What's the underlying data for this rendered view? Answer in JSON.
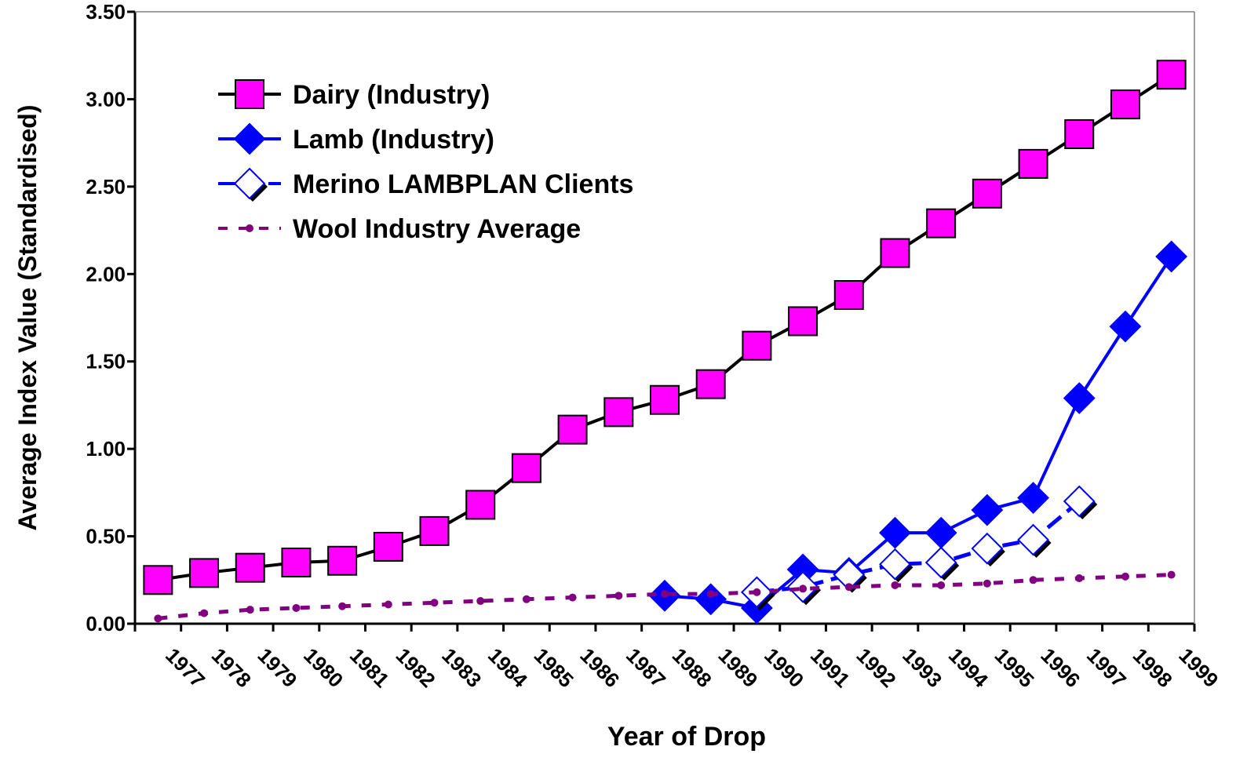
{
  "chart_data": {
    "type": "line",
    "x_label": "Year of Drop",
    "y_label": "Average Index Value (Standardised)",
    "categories": [
      "1977",
      "1978",
      "1979",
      "1980",
      "1981",
      "1982",
      "1983",
      "1984",
      "1985",
      "1986",
      "1987",
      "1988",
      "1989",
      "1990",
      "1991",
      "1992",
      "1993",
      "1994",
      "1995",
      "1996",
      "1997",
      "1998",
      "1999"
    ],
    "series": [
      {
        "name": "Dairy (Industry)",
        "color": "#ff00ff",
        "line_color": "#000000",
        "marker": "square",
        "line_style": "solid",
        "values": [
          0.25,
          0.29,
          0.32,
          0.35,
          0.36,
          0.44,
          0.53,
          0.68,
          0.89,
          1.11,
          1.21,
          1.28,
          1.37,
          1.59,
          1.73,
          1.88,
          2.12,
          2.29,
          2.46,
          2.63,
          2.8,
          2.97,
          3.14
        ]
      },
      {
        "name": "Lamb (Industry)",
        "color": "#0000ff",
        "line_color": "#0000ff",
        "marker": "diamond",
        "line_style": "solid",
        "values": [
          null,
          null,
          null,
          null,
          null,
          null,
          null,
          null,
          null,
          null,
          null,
          0.16,
          0.14,
          0.09,
          0.31,
          0.29,
          0.52,
          0.52,
          0.65,
          0.72,
          1.29,
          1.7,
          2.1
        ]
      },
      {
        "name": "Merino LAMBPLAN Clients",
        "color": "#0000ff",
        "line_color": "#0000ff",
        "marker": "open-diamond",
        "line_style": "dashed",
        "values": [
          null,
          null,
          null,
          null,
          null,
          null,
          null,
          null,
          null,
          null,
          null,
          null,
          null,
          0.18,
          0.21,
          0.28,
          0.34,
          0.35,
          0.43,
          0.48,
          0.7,
          null,
          null
        ]
      },
      {
        "name": "Wool Industry Average",
        "color": "#800080",
        "line_color": "#800080",
        "marker": "dot",
        "line_style": "dotted",
        "values": [
          0.03,
          0.06,
          0.08,
          0.09,
          0.1,
          0.11,
          0.12,
          0.13,
          0.14,
          0.15,
          0.16,
          0.17,
          0.17,
          0.18,
          0.2,
          0.21,
          0.22,
          0.22,
          0.23,
          0.25,
          0.26,
          0.27,
          0.28
        ]
      }
    ],
    "ylim": [
      0,
      3.5
    ],
    "yticks": [
      {
        "value": 0,
        "label": "0.00"
      },
      {
        "value": 0.5,
        "label": "0.50"
      },
      {
        "value": 1,
        "label": "1.00"
      },
      {
        "value": 1.5,
        "label": "1.50"
      },
      {
        "value": 2,
        "label": "2.00"
      },
      {
        "value": 2.5,
        "label": "2.50"
      },
      {
        "value": 3,
        "label": "3.00"
      },
      {
        "value": 3.5,
        "label": "3.50"
      }
    ],
    "grid": false,
    "legend": "upper-left"
  }
}
